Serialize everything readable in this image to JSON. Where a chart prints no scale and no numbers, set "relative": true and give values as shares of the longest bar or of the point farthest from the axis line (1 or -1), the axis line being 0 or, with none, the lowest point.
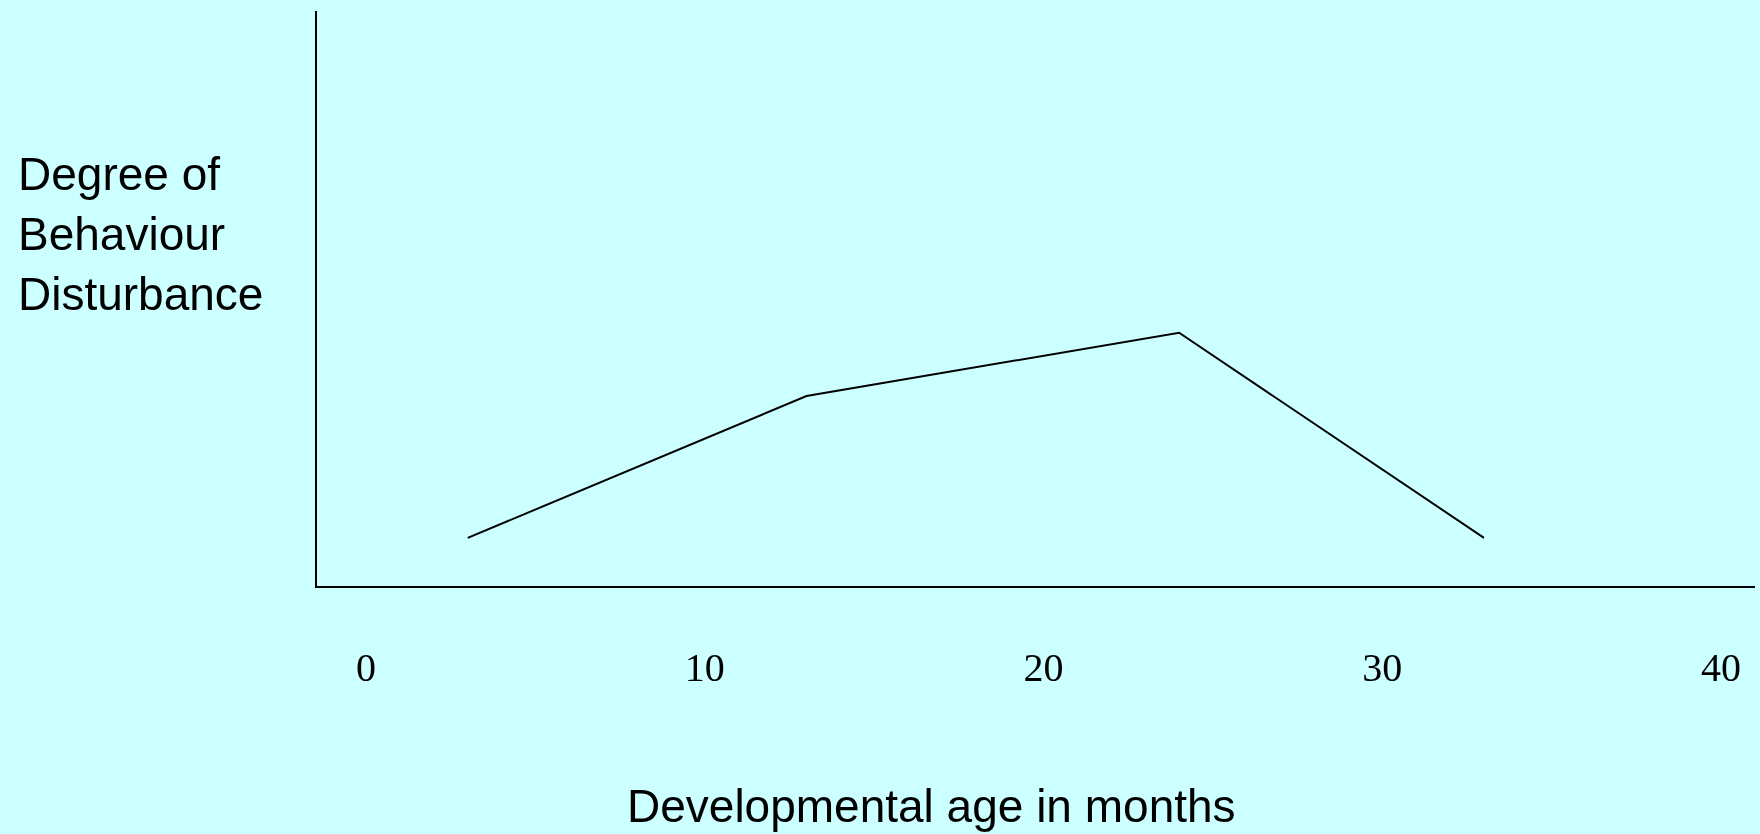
{
  "chart_data": {
    "type": "line",
    "xlabel": "Developmental age in months",
    "ylabel": "Degree of\nBehaviour\nDisturbance",
    "relative": true,
    "x": [
      3,
      13,
      24,
      33
    ],
    "series": [
      {
        "color": "#000000",
        "values": [
          0.19,
          0.75,
          1,
          0.19
        ]
      }
    ],
    "xlim": [
      -1.45,
      41
    ],
    "xticks": [
      0,
      10,
      20,
      30,
      40
    ],
    "grid": false,
    "marker": "none",
    "line_style": "solid"
  }
}
